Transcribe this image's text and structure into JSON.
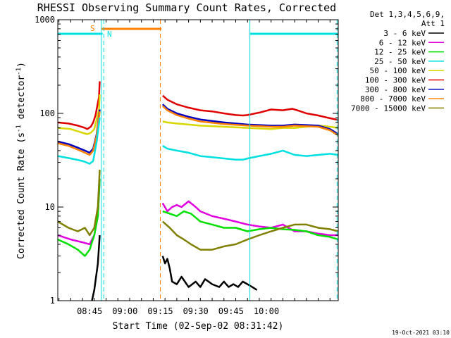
{
  "chart_data": {
    "type": "line",
    "title": "RHESSI Observing Summary Count Rates, Corrected",
    "xlabel": "Start Time (02-Sep-02 08:31:42)",
    "ylabel": "Corrected Count Rate (s",
    "ylabel_sup": "-1",
    "ylabel_mid": " detector",
    "ylabel_sup2": "-1",
    "ylabel_end": ")",
    "x_range_min": [
      39.5,
      158.5
    ],
    "y_scale": "log",
    "ylim": [
      1,
      1000
    ],
    "x_ticks": [
      {
        "min": 53,
        "label": "08:45"
      },
      {
        "min": 68,
        "label": "09:00"
      },
      {
        "min": 83,
        "label": "09:15"
      },
      {
        "min": 98,
        "label": "09:30"
      },
      {
        "min": 113,
        "label": "09:45"
      },
      {
        "min": 128,
        "label": "10:00"
      }
    ],
    "y_ticks": [
      {
        "value": 1,
        "label": "1"
      },
      {
        "value": 10,
        "label": "10"
      },
      {
        "value": 100,
        "label": "100"
      },
      {
        "value": 1000,
        "label": "1000"
      }
    ],
    "legend": {
      "placement": "right",
      "header": [
        "Det 1,3,4,5,6,9,",
        "Att 1"
      ],
      "entries": [
        {
          "label": "3 - 6 keV",
          "color": "#000000"
        },
        {
          "label": "6 - 12 keV",
          "color": "#e000e0"
        },
        {
          "label": "12 - 25 keV",
          "color": "#00e000"
        },
        {
          "label": "25 - 50 keV",
          "color": "#00e0e0"
        },
        {
          "label": "50 - 100 keV",
          "color": "#d8d800"
        },
        {
          "label": "100 - 300 keV",
          "color": "#e00000"
        },
        {
          "label": "300 - 800 keV",
          "color": "#0000c0"
        },
        {
          "label": "800 - 7000 keV",
          "color": "#ff8000"
        },
        {
          "label": "7000 - 15000 keV",
          "color": "#808000"
        }
      ]
    },
    "series": [
      {
        "color": "#e00000",
        "x": [
          39.5,
          44,
          48,
          51,
          52,
          53.5,
          54.5,
          55.5,
          57,
          57.3,
          null,
          84,
          86,
          90,
          95,
          100,
          105,
          110,
          115,
          118,
          120,
          125,
          130,
          135,
          139,
          142,
          145,
          150,
          154,
          158.5
        ],
        "y": [
          80,
          78,
          74,
          70,
          68,
          72,
          80,
          95,
          150,
          220,
          null,
          155,
          140,
          125,
          115,
          108,
          105,
          100,
          96,
          95,
          96,
          102,
          110,
          108,
          112,
          106,
          100,
          95,
          90,
          85
        ]
      },
      {
        "color": "#d8d800",
        "x": [
          39.5,
          45,
          50,
          52,
          53.5,
          55,
          57,
          57.3,
          null,
          84,
          86,
          90,
          95,
          100,
          110,
          120,
          130,
          135,
          140,
          145,
          150,
          155,
          158.5
        ],
        "y": [
          70,
          68,
          62,
          60,
          62,
          68,
          110,
          160,
          null,
          82,
          80,
          78,
          76,
          74,
          72,
          70,
          68,
          70,
          70,
          72,
          74,
          72,
          70
        ]
      },
      {
        "color": "#0000c0",
        "x": [
          39.5,
          44,
          48,
          51,
          53,
          54.5,
          56,
          57.3,
          null,
          84,
          86,
          90,
          95,
          100,
          110,
          120,
          130,
          135,
          140,
          145,
          150,
          155,
          158.5
        ],
        "y": [
          50,
          47,
          43,
          40,
          38,
          42,
          60,
          110,
          null,
          125,
          112,
          100,
          92,
          86,
          80,
          76,
          74,
          74,
          76,
          75,
          74,
          68,
          60
        ]
      },
      {
        "color": "#ff8000",
        "x": [
          39.5,
          44,
          48,
          51,
          53,
          54.5,
          56,
          57.3,
          null,
          84,
          86,
          90,
          95,
          100,
          110,
          120,
          130,
          135,
          140,
          145,
          150,
          155,
          158.5
        ],
        "y": [
          48,
          45,
          41,
          38,
          36,
          40,
          58,
          105,
          null,
          120,
          108,
          96,
          88,
          82,
          77,
          74,
          72,
          72,
          74,
          73,
          72,
          66,
          58
        ]
      },
      {
        "color": "#00e0e0",
        "x": [
          39.5,
          45,
          50,
          53,
          54.5,
          56,
          57.3,
          null,
          84,
          86,
          90,
          95,
          100,
          105,
          110,
          115,
          118,
          120,
          125,
          130,
          135,
          140,
          145,
          150,
          155,
          158.5
        ],
        "y": [
          35,
          33,
          31,
          29,
          31,
          50,
          90,
          null,
          45,
          42,
          40,
          38,
          35,
          34,
          33,
          32,
          32,
          33,
          35,
          37,
          40,
          36,
          35,
          36,
          37,
          36
        ]
      },
      {
        "color": "#e000e0",
        "x": [
          39.5,
          45,
          50,
          53,
          55,
          56.5,
          57.3,
          null,
          84,
          86,
          88,
          90,
          92,
          95,
          98,
          100,
          105,
          110,
          115,
          120,
          125,
          130,
          135,
          140,
          145,
          150,
          155,
          158.5
        ],
        "y": [
          5,
          4.5,
          4.2,
          4,
          5,
          8,
          20,
          null,
          11,
          9,
          10,
          10.5,
          10,
          11.5,
          10,
          9,
          8,
          7.5,
          7,
          6.5,
          6.2,
          6,
          6.5,
          5.5,
          5.5,
          5.2,
          5,
          5
        ]
      },
      {
        "color": "#00e000",
        "x": [
          39.5,
          44,
          48,
          51,
          53,
          55,
          56.5,
          57.3,
          null,
          84,
          87,
          90,
          93,
          96,
          100,
          105,
          110,
          115,
          120,
          125,
          130,
          135,
          140,
          145,
          150,
          155,
          158.5
        ],
        "y": [
          4.5,
          4,
          3.5,
          3,
          3.5,
          5,
          8,
          20,
          null,
          9,
          8.5,
          8,
          9,
          8.5,
          7,
          6.5,
          6,
          6,
          5.5,
          5.8,
          6,
          5.8,
          5.7,
          5.5,
          5,
          4.8,
          4.5
        ]
      },
      {
        "color": "#808000",
        "x": [
          39.5,
          44,
          48,
          51,
          53,
          55,
          56.5,
          57.3,
          null,
          84,
          87,
          90,
          93,
          96,
          100,
          105,
          110,
          115,
          120,
          125,
          130,
          135,
          140,
          145,
          150,
          155,
          158.5
        ],
        "y": [
          7,
          6,
          5.5,
          6,
          5,
          6,
          10,
          25,
          null,
          7,
          6,
          5,
          4.5,
          4,
          3.5,
          3.5,
          3.8,
          4,
          4.5,
          5,
          5.5,
          6,
          6.5,
          6.5,
          6,
          5.8,
          5.5
        ]
      },
      {
        "color": "#000000",
        "x": [
          54,
          55,
          56.5,
          57.3,
          null,
          84,
          85,
          86,
          87,
          88,
          90,
          92,
          95,
          98,
          100,
          102,
          105,
          108,
          110,
          112,
          114,
          116,
          118,
          120,
          122,
          124
        ],
        "y": [
          1,
          1.3,
          2.5,
          5,
          null,
          3,
          2.5,
          2.8,
          2.2,
          1.6,
          1.5,
          1.8,
          1.4,
          1.6,
          1.4,
          1.7,
          1.5,
          1.4,
          1.6,
          1.4,
          1.5,
          1.4,
          1.6,
          1.5,
          1.4,
          1.3
        ]
      }
    ],
    "annotations": {
      "cyan_top_bars": [
        [
          39.5,
          58.5
        ],
        [
          121,
          158.5
        ]
      ],
      "orange_top_bar": [
        58,
        83.5
      ],
      "cyan_solid_vlines": [
        58,
        121
      ],
      "cyan_dashed_vlines": [
        59,
        158
      ],
      "orange_dashed_vlines": [
        83
      ],
      "labels": [
        {
          "text": "S",
          "color": "#ff8000"
        },
        {
          "text": "N",
          "color": "#00e0e0"
        }
      ]
    },
    "timestamp": "19-Oct-2021 03:10"
  }
}
